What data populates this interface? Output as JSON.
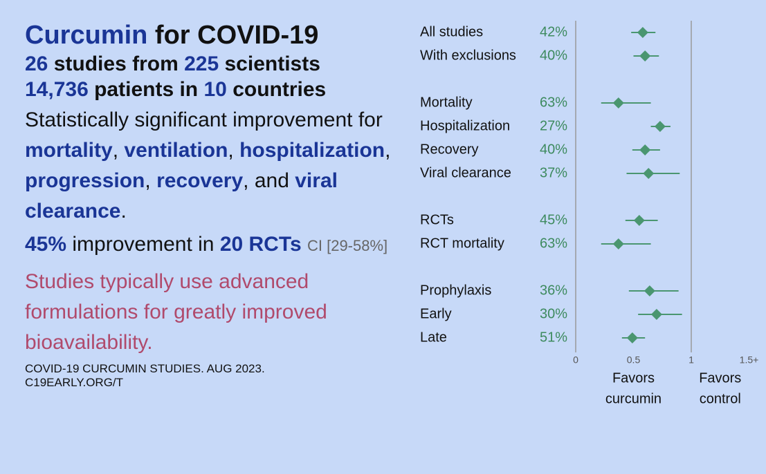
{
  "summary": {
    "title": [
      "Curcumin",
      "for COVID-19"
    ],
    "studies": [
      "26",
      "studies from",
      "225",
      "scientists"
    ],
    "patients": [
      "14,736",
      "patients in",
      "10",
      "countries"
    ],
    "significance": [
      "Statistically significant improvement for",
      "mortality",
      ",",
      "ventilation",
      ",",
      "hospitalization",
      ",",
      "progression",
      ",",
      "recovery",
      ", and",
      "viral clearance",
      "."
    ],
    "rct": [
      "45%",
      "improvement in",
      "20 RCTs",
      "CI [29-58%]"
    ],
    "note": "Studies typically use advanced formulations for greatly improved bioavailability.",
    "footer": [
      "COVID-19 CURCUMIN STUDIES. AUG 2023.",
      "C19EARLY.ORG/T"
    ]
  },
  "chart_data": {
    "type": "forest",
    "categories": [
      "All studies",
      "With exclusions",
      null,
      "Mortality",
      "Hospitalization",
      "Recovery",
      "Viral clearance",
      null,
      "RCTs",
      "RCT mortality",
      null,
      "Prophylaxis",
      "Early",
      "Late"
    ],
    "improvement_labels": [
      "42%",
      "40%",
      null,
      "63%",
      "27%",
      "40%",
      "37%",
      null,
      "45%",
      "63%",
      null,
      "36%",
      "30%",
      "51%"
    ],
    "values": [
      0.58,
      0.6,
      null,
      0.37,
      0.73,
      0.6,
      0.63,
      null,
      0.55,
      0.37,
      null,
      0.64,
      0.7,
      0.49
    ],
    "ci_low": [
      0.48,
      0.5,
      null,
      0.22,
      0.65,
      0.49,
      0.44,
      null,
      0.43,
      0.22,
      null,
      0.46,
      0.54,
      0.4
    ],
    "ci_high": [
      0.69,
      0.72,
      null,
      0.65,
      0.82,
      0.73,
      0.9,
      null,
      0.71,
      0.65,
      null,
      0.89,
      0.92,
      0.6
    ],
    "xlim": [
      0,
      1.5
    ],
    "xticks": [
      0,
      0.5,
      1,
      {
        "value": 1.5,
        "label": "1.5+"
      }
    ],
    "reference_lines": [
      0,
      1
    ],
    "x_annotations": [
      [
        "Favors",
        "curcumin"
      ],
      [
        "Favors",
        "control"
      ]
    ],
    "color": "#4a9670",
    "label_color": "#3d8a5e"
  }
}
